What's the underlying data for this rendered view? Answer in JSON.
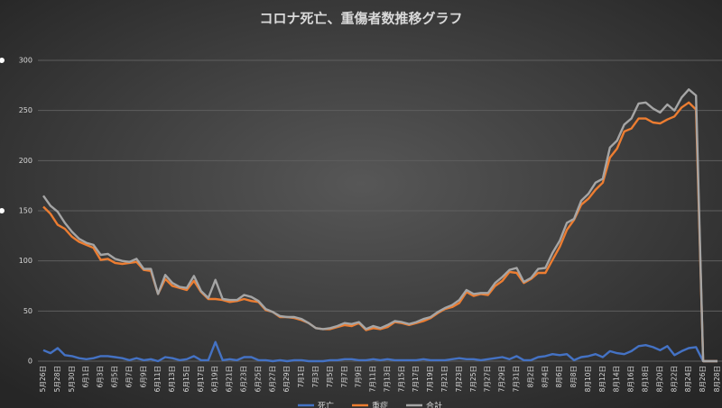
{
  "chart_data": {
    "type": "line",
    "title": "コロナ死亡、重傷者数推移グラフ",
    "categories": [
      "5月26日",
      null,
      "5月28日",
      null,
      "5月30日",
      null,
      "6月1日",
      null,
      "6月3日",
      null,
      "6月5日",
      null,
      "6月7日",
      null,
      "6月9日",
      null,
      "6月11日",
      null,
      "6月13日",
      null,
      "6月15日",
      null,
      "6月17日",
      null,
      "6月19日",
      null,
      "6月21日",
      null,
      "6月23日",
      null,
      "6月25日",
      null,
      "6月27日",
      null,
      "6月29日",
      null,
      "7月1日",
      null,
      "7月3日",
      null,
      "7月5日",
      null,
      "7月7日",
      null,
      "7月9日",
      null,
      "7月11日",
      null,
      "7月13日",
      null,
      "7月15日",
      null,
      "7月17日",
      null,
      "7月19日",
      null,
      "7月21日",
      null,
      "7月23日",
      null,
      "7月25日",
      null,
      "7月27日",
      null,
      "7月29日",
      null,
      "7月31日",
      null,
      "8月2日",
      null,
      "8月4日",
      null,
      "8月6日",
      null,
      "8月8日",
      null,
      "8月10日",
      null,
      "8月12日",
      null,
      "8月14日",
      null,
      "8月16日",
      null,
      "8月18日",
      null,
      "8月20日",
      null,
      "8月22日",
      null,
      "8月24日",
      null,
      "8月26日",
      null,
      "8月28日"
    ],
    "series": [
      {
        "name": "死亡",
        "color": "#4472c4",
        "values": [
          11,
          8,
          13,
          6,
          5,
          3,
          2,
          3,
          5,
          5,
          4,
          3,
          1,
          3,
          1,
          2,
          0,
          4,
          3,
          1,
          2,
          5,
          1,
          1,
          19,
          1,
          2,
          1,
          4,
          4,
          1,
          1,
          0,
          1,
          0,
          1,
          1,
          0,
          0,
          0,
          1,
          1,
          2,
          2,
          1,
          1,
          2,
          1,
          2,
          1,
          1,
          1,
          1,
          2,
          1,
          1,
          1,
          2,
          3,
          2,
          2,
          1,
          2,
          3,
          4,
          2,
          5,
          1,
          1,
          4,
          5,
          7,
          6,
          7,
          1,
          4,
          5,
          7,
          4,
          10,
          8,
          7,
          10,
          15,
          16,
          14,
          11,
          15,
          6,
          10,
          13,
          14,
          0,
          0,
          0
        ]
      },
      {
        "name": "重症",
        "color": "#ed7d31",
        "values": [
          154,
          147,
          136,
          132,
          124,
          119,
          116,
          113,
          101,
          102,
          98,
          97,
          98,
          99,
          91,
          90,
          67,
          82,
          75,
          73,
          71,
          80,
          69,
          62,
          62,
          61,
          59,
          60,
          62,
          60,
          59,
          51,
          49,
          44,
          44,
          43,
          41,
          38,
          33,
          32,
          32,
          34,
          36,
          35,
          38,
          31,
          33,
          32,
          34,
          39,
          38,
          36,
          38,
          40,
          43,
          48,
          52,
          54,
          58,
          69,
          65,
          67,
          66,
          75,
          80,
          89,
          88,
          78,
          82,
          88,
          88,
          101,
          114,
          131,
          141,
          156,
          162,
          171,
          178,
          203,
          212,
          229,
          232,
          242,
          242,
          238,
          237,
          241,
          244,
          253,
          258,
          251,
          0,
          0,
          0
        ]
      },
      {
        "name": "合計",
        "color": "#a5a5a5",
        "values": [
          165,
          155,
          149,
          138,
          129,
          122,
          118,
          116,
          106,
          107,
          102,
          100,
          99,
          102,
          92,
          92,
          67,
          86,
          78,
          74,
          73,
          85,
          70,
          63,
          81,
          62,
          61,
          61,
          66,
          64,
          60,
          52,
          49,
          45,
          44,
          44,
          42,
          38,
          33,
          32,
          33,
          35,
          38,
          37,
          39,
          32,
          35,
          33,
          36,
          40,
          39,
          37,
          39,
          42,
          44,
          49,
          53,
          56,
          61,
          71,
          67,
          68,
          68,
          78,
          84,
          91,
          93,
          79,
          83,
          92,
          93,
          108,
          120,
          138,
          142,
          160,
          167,
          178,
          182,
          213,
          220,
          236,
          242,
          257,
          258,
          252,
          248,
          256,
          250,
          263,
          271,
          265,
          0,
          0,
          0
        ]
      }
    ],
    "ylim": [
      0,
      300
    ],
    "yticks": [
      0,
      50,
      100,
      150,
      200,
      250,
      300
    ],
    "grid": true,
    "legend": "bottom"
  }
}
